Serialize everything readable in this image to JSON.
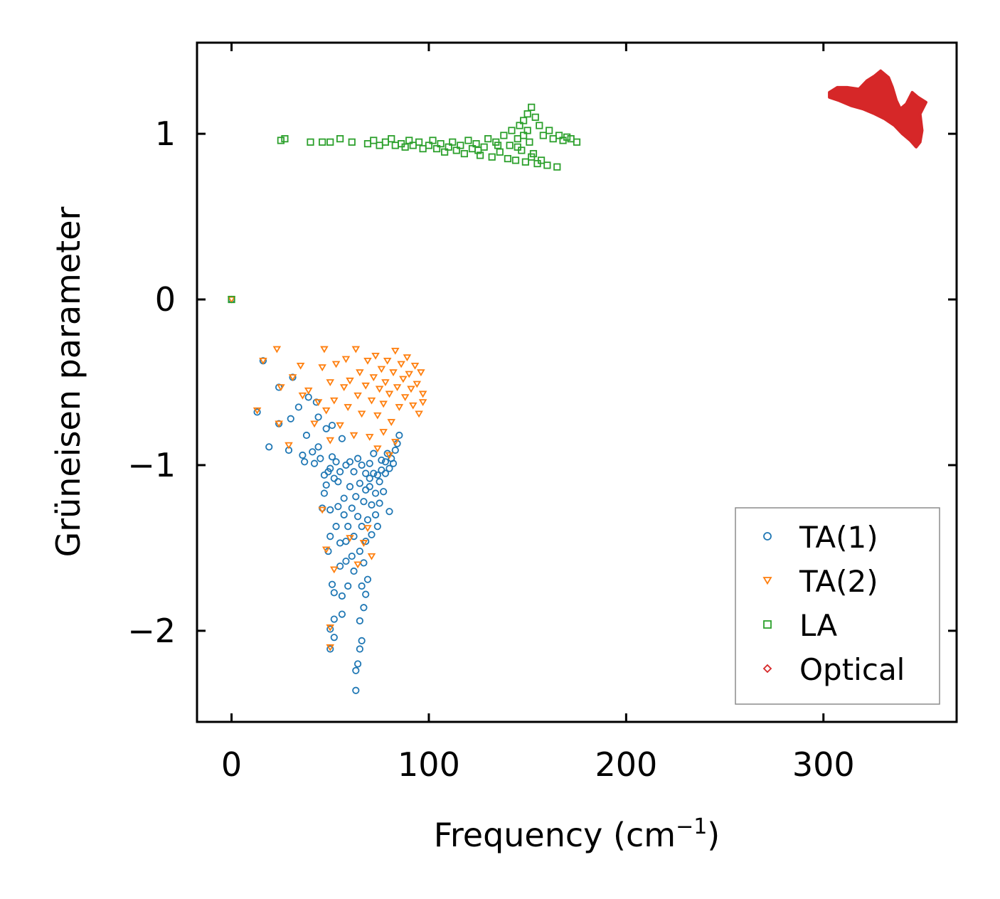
{
  "chart_data": {
    "type": "scatter",
    "title": "",
    "xlabel": "Frequency (cm",
    "xlabel_sup": "−1",
    "xlabel_end": ")",
    "ylabel": "Grüneisen parameter",
    "xlim": [
      -17.5,
      367.5
    ],
    "ylim": [
      -2.55,
      1.55
    ],
    "x_ticks": [
      0,
      100,
      200,
      300
    ],
    "x_tick_labels": [
      "0",
      "100",
      "200",
      "300"
    ],
    "y_ticks": [
      1,
      0,
      -1,
      -2
    ],
    "y_tick_labels": [
      "1",
      "0",
      "−1",
      "−2"
    ],
    "grid": false,
    "legend_position": "lower-right",
    "series": [
      {
        "name": "TA(1)",
        "marker": "circle",
        "color": "#1f77b4",
        "points": [
          [
            0,
            0
          ],
          [
            16,
            -0.37
          ],
          [
            13,
            -0.68
          ],
          [
            19,
            -0.89
          ],
          [
            24,
            -0.53
          ],
          [
            24,
            -0.75
          ],
          [
            29,
            -0.91
          ],
          [
            30,
            -0.72
          ],
          [
            31,
            -0.47
          ],
          [
            34,
            -0.65
          ],
          [
            36,
            -0.94
          ],
          [
            37,
            -0.98
          ],
          [
            38,
            -0.82
          ],
          [
            39,
            -0.59
          ],
          [
            41,
            -0.92
          ],
          [
            42,
            -0.99
          ],
          [
            43,
            -0.62
          ],
          [
            44,
            -0.71
          ],
          [
            44,
            -0.89
          ],
          [
            45,
            -0.96
          ],
          [
            46,
            -1.26
          ],
          [
            47,
            -1.06
          ],
          [
            47,
            -1.17
          ],
          [
            48,
            -0.78
          ],
          [
            48,
            -1.12
          ],
          [
            49,
            -1.04
          ],
          [
            49,
            -1.52
          ],
          [
            50,
            -1.43
          ],
          [
            50,
            -1.27
          ],
          [
            50,
            -1.02
          ],
          [
            50,
            -2.11
          ],
          [
            50,
            -1.99
          ],
          [
            51,
            -0.76
          ],
          [
            51,
            -1.72
          ],
          [
            51,
            -0.95
          ],
          [
            52,
            -1.77
          ],
          [
            52,
            -1.93
          ],
          [
            52,
            -1.08
          ],
          [
            52,
            -2.04
          ],
          [
            53,
            -1.37
          ],
          [
            53,
            -0.98
          ],
          [
            54,
            -1.25
          ],
          [
            54,
            -1.1
          ],
          [
            55,
            -1.47
          ],
          [
            55,
            -1.61
          ],
          [
            55,
            -1.04
          ],
          [
            56,
            -0.84
          ],
          [
            56,
            -1.79
          ],
          [
            56,
            -1.9
          ],
          [
            57,
            -1.3
          ],
          [
            57,
            -1.2
          ],
          [
            58,
            -1.46
          ],
          [
            58,
            -1.58
          ],
          [
            58,
            -1.0
          ],
          [
            59,
            -1.73
          ],
          [
            59,
            -1.37
          ],
          [
            60,
            -1.13
          ],
          [
            60,
            -0.98
          ],
          [
            61,
            -1.55
          ],
          [
            61,
            -1.26
          ],
          [
            62,
            -1.64
          ],
          [
            62,
            -1.04
          ],
          [
            62,
            -1.43
          ],
          [
            63,
            -2.36
          ],
          [
            63,
            -2.24
          ],
          [
            63,
            -1.19
          ],
          [
            64,
            -2.2
          ],
          [
            64,
            -1.31
          ],
          [
            64,
            -0.96
          ],
          [
            65,
            -2.11
          ],
          [
            65,
            -1.94
          ],
          [
            65,
            -1.52
          ],
          [
            65,
            -1.11
          ],
          [
            66,
            -2.06
          ],
          [
            66,
            -1.73
          ],
          [
            66,
            -1.0
          ],
          [
            66,
            -1.37
          ],
          [
            67,
            -1.86
          ],
          [
            67,
            -1.59
          ],
          [
            67,
            -1.22
          ],
          [
            68,
            -1.78
          ],
          [
            68,
            -1.46
          ],
          [
            68,
            -1.05
          ],
          [
            69,
            -1.69
          ],
          [
            69,
            -1.33
          ],
          [
            70,
            -1.13
          ],
          [
            70,
            -0.99
          ],
          [
            71,
            -1.42
          ],
          [
            71,
            -1.24
          ],
          [
            72,
            -1.05
          ],
          [
            72,
            -0.93
          ],
          [
            73,
            -1.3
          ],
          [
            73,
            -1.17
          ],
          [
            74,
            -1.37
          ],
          [
            75,
            -1.1
          ],
          [
            75,
            -1.23
          ],
          [
            76,
            -0.97
          ],
          [
            77,
            -1.16
          ],
          [
            78,
            -1.05
          ],
          [
            79,
            -0.93
          ],
          [
            80,
            -1.28
          ],
          [
            80,
            -1.02
          ],
          [
            81,
            -0.96
          ],
          [
            82,
            -0.99
          ],
          [
            83,
            -0.91
          ],
          [
            84,
            -0.87
          ],
          [
            85,
            -0.82
          ],
          [
            78,
            -0.98
          ],
          [
            76,
            -1.03
          ],
          [
            74,
            -1.06
          ],
          [
            70,
            -1.08
          ],
          [
            68,
            -1.15
          ]
        ]
      },
      {
        "name": "TA(2)",
        "marker": "triangle-down",
        "color": "#ff7f0e",
        "points": [
          [
            0,
            0
          ],
          [
            13,
            -0.67
          ],
          [
            16,
            -0.37
          ],
          [
            23,
            -0.3
          ],
          [
            24,
            -0.75
          ],
          [
            25,
            -0.53
          ],
          [
            29,
            -0.88
          ],
          [
            31,
            -0.47
          ],
          [
            35,
            -0.4
          ],
          [
            36,
            -0.58
          ],
          [
            39,
            -0.55
          ],
          [
            42,
            -0.75
          ],
          [
            44,
            -0.62
          ],
          [
            46,
            -0.41
          ],
          [
            47,
            -0.3
          ],
          [
            48,
            -0.67
          ],
          [
            50,
            -0.5
          ],
          [
            50,
            -0.85
          ],
          [
            52,
            -0.61
          ],
          [
            53,
            -0.39
          ],
          [
            55,
            -0.76
          ],
          [
            57,
            -0.53
          ],
          [
            58,
            -0.36
          ],
          [
            59,
            -0.65
          ],
          [
            60,
            -0.49
          ],
          [
            62,
            -0.82
          ],
          [
            63,
            -0.3
          ],
          [
            64,
            -0.58
          ],
          [
            65,
            -0.44
          ],
          [
            66,
            -0.69
          ],
          [
            68,
            -0.52
          ],
          [
            69,
            -0.37
          ],
          [
            70,
            -0.83
          ],
          [
            71,
            -0.61
          ],
          [
            72,
            -0.47
          ],
          [
            73,
            -0.34
          ],
          [
            74,
            -0.7
          ],
          [
            75,
            -0.54
          ],
          [
            76,
            -0.42
          ],
          [
            77,
            -0.63
          ],
          [
            78,
            -0.5
          ],
          [
            79,
            -0.37
          ],
          [
            80,
            -0.57
          ],
          [
            81,
            -0.74
          ],
          [
            82,
            -0.44
          ],
          [
            83,
            -0.31
          ],
          [
            84,
            -0.53
          ],
          [
            85,
            -0.65
          ],
          [
            86,
            -0.39
          ],
          [
            87,
            -0.48
          ],
          [
            88,
            -0.59
          ],
          [
            89,
            -0.35
          ],
          [
            90,
            -0.45
          ],
          [
            91,
            -0.54
          ],
          [
            92,
            -0.64
          ],
          [
            93,
            -0.4
          ],
          [
            94,
            -0.51
          ],
          [
            95,
            -0.69
          ],
          [
            96,
            -0.44
          ],
          [
            97,
            -0.57
          ],
          [
            97,
            -0.62
          ],
          [
            83,
            -0.86
          ],
          [
            80,
            -0.94
          ],
          [
            77,
            -0.8
          ],
          [
            74,
            -0.9
          ],
          [
            71,
            -1.55
          ],
          [
            67,
            -1.47
          ],
          [
            50,
            -1.98
          ],
          [
            50,
            -2.1
          ],
          [
            46,
            -1.27
          ],
          [
            48,
            -1.51
          ],
          [
            52,
            -1.63
          ],
          [
            60,
            -1.44
          ],
          [
            64,
            -1.6
          ],
          [
            69,
            -1.38
          ]
        ]
      },
      {
        "name": "LA",
        "marker": "square",
        "color": "#2ca02c",
        "points": [
          [
            0,
            0
          ],
          [
            25,
            0.96
          ],
          [
            27,
            0.97
          ],
          [
            40,
            0.95
          ],
          [
            46,
            0.95
          ],
          [
            50,
            0.95
          ],
          [
            55,
            0.97
          ],
          [
            61,
            0.95
          ],
          [
            69,
            0.94
          ],
          [
            72,
            0.96
          ],
          [
            75,
            0.93
          ],
          [
            78,
            0.95
          ],
          [
            81,
            0.97
          ],
          [
            83,
            0.93
          ],
          [
            86,
            0.94
          ],
          [
            88,
            0.92
          ],
          [
            90,
            0.96
          ],
          [
            92,
            0.93
          ],
          [
            95,
            0.95
          ],
          [
            97,
            0.91
          ],
          [
            100,
            0.93
          ],
          [
            102,
            0.96
          ],
          [
            104,
            0.91
          ],
          [
            106,
            0.94
          ],
          [
            108,
            0.89
          ],
          [
            110,
            0.92
          ],
          [
            112,
            0.95
          ],
          [
            114,
            0.9
          ],
          [
            116,
            0.93
          ],
          [
            118,
            0.88
          ],
          [
            120,
            0.96
          ],
          [
            122,
            0.91
          ],
          [
            124,
            0.94
          ],
          [
            126,
            0.87
          ],
          [
            128,
            0.92
          ],
          [
            130,
            0.97
          ],
          [
            132,
            0.86
          ],
          [
            134,
            0.95
          ],
          [
            136,
            0.89
          ],
          [
            138,
            0.99
          ],
          [
            140,
            0.85
          ],
          [
            141,
            0.93
          ],
          [
            142,
            1.02
          ],
          [
            144,
            0.84
          ],
          [
            145,
            0.97
          ],
          [
            146,
            1.05
          ],
          [
            147,
            0.9
          ],
          [
            148,
            1.08
          ],
          [
            149,
            0.83
          ],
          [
            150,
            1.12
          ],
          [
            151,
            0.95
          ],
          [
            152,
            1.16
          ],
          [
            153,
            0.88
          ],
          [
            154,
            1.1
          ],
          [
            155,
            0.82
          ],
          [
            156,
            1.05
          ],
          [
            158,
            0.99
          ],
          [
            160,
            0.81
          ],
          [
            161,
            1.02
          ],
          [
            163,
            0.97
          ],
          [
            165,
            0.8
          ],
          [
            166,
            0.99
          ],
          [
            168,
            0.96
          ],
          [
            170,
            0.98
          ],
          [
            172,
            0.97
          ],
          [
            175,
            0.95
          ],
          [
            135,
            0.93
          ],
          [
            125,
            0.9
          ],
          [
            145,
            0.92
          ],
          [
            152,
            0.86
          ],
          [
            157,
            0.84
          ],
          [
            148,
            0.99
          ],
          [
            150,
            1.02
          ]
        ]
      },
      {
        "name": "Optical",
        "marker": "diamond",
        "color": "#d62728",
        "shape": [
          [
            303,
            1.25
          ],
          [
            307,
            1.28
          ],
          [
            312,
            1.28
          ],
          [
            318,
            1.27
          ],
          [
            322,
            1.32
          ],
          [
            326,
            1.35
          ],
          [
            329,
            1.38
          ],
          [
            333,
            1.34
          ],
          [
            335,
            1.28
          ],
          [
            337,
            1.2
          ],
          [
            339,
            1.15
          ],
          [
            342,
            1.18
          ],
          [
            345,
            1.25
          ],
          [
            348,
            1.22
          ],
          [
            352,
            1.19
          ],
          [
            349,
            1.12
          ],
          [
            350,
            1.02
          ],
          [
            349,
            0.95
          ],
          [
            347,
            0.92
          ],
          [
            344,
            0.96
          ],
          [
            340,
            1.0
          ],
          [
            336,
            1.05
          ],
          [
            331,
            1.09
          ],
          [
            326,
            1.12
          ],
          [
            320,
            1.15
          ],
          [
            314,
            1.17
          ],
          [
            308,
            1.2
          ],
          [
            303,
            1.22
          ]
        ]
      }
    ]
  }
}
